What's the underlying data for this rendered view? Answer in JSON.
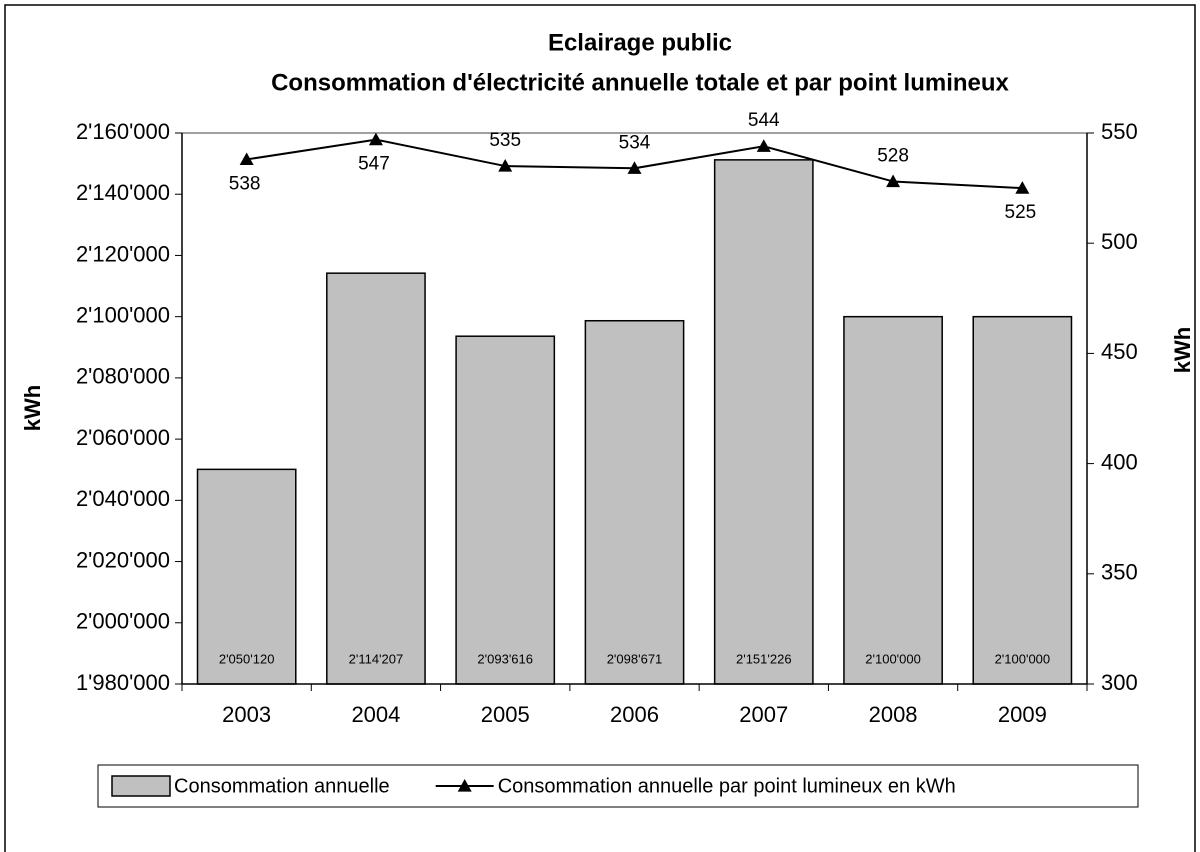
{
  "chart_data": {
    "type": "bar",
    "title": [
      "Eclairage public",
      "Consommation d'électricité annuelle totale et par point lumineux"
    ],
    "y_label": "kWh",
    "y2_label": "kWh",
    "categories": [
      "2003",
      "2004",
      "2005",
      "2006",
      "2007",
      "2008",
      "2009"
    ],
    "series": [
      {
        "name": "Consommation annuelle",
        "type": "bar",
        "color": "#c0c0c0",
        "values": [
          2050120,
          2114207,
          2093616,
          2098671,
          2151226,
          2100000,
          2100000
        ],
        "value_labels": [
          "2'050'120",
          "2'114'207",
          "2'093'616",
          "2'098'671",
          "2'151'226",
          "2'100'000",
          "2'100'000"
        ]
      },
      {
        "name": "Consommation annuelle par point lumineux en kWh",
        "type": "line",
        "axis": "y2",
        "color": "#000000",
        "values": [
          538,
          547,
          535,
          534,
          544,
          528,
          525
        ]
      }
    ],
    "ylim": [
      1980000,
      2160000
    ],
    "yticks": [
      {
        "value": 1980000,
        "label": "1'980'000"
      },
      {
        "value": 2000000,
        "label": "2'000'000"
      },
      {
        "value": 2020000,
        "label": "2'020'000"
      },
      {
        "value": 2040000,
        "label": "2'040'000"
      },
      {
        "value": 2060000,
        "label": "2'060'000"
      },
      {
        "value": 2080000,
        "label": "2'080'000"
      },
      {
        "value": 2100000,
        "label": "2'100'000"
      },
      {
        "value": 2120000,
        "label": "2'120'000"
      },
      {
        "value": 2140000,
        "label": "2'140'000"
      },
      {
        "value": 2160000,
        "label": "2'160'000"
      }
    ],
    "y2lim": [
      300,
      550
    ],
    "y2ticks": [
      300,
      350,
      400,
      450,
      500,
      550
    ],
    "grid": false,
    "legend": "bottom"
  }
}
